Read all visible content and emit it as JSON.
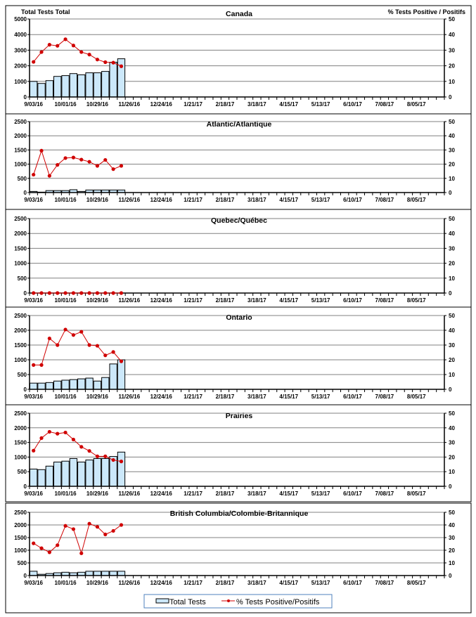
{
  "chart_data": [
    {
      "type": "bar+line",
      "title": "Canada",
      "ylabel_left": "Total Tests Total",
      "ylabel_right": "% Tests Positive / Positifs",
      "ylim_left": [
        0,
        5000
      ],
      "yticks_left": [
        0,
        1000,
        2000,
        3000,
        4000,
        5000
      ],
      "ylim_right": [
        0,
        50
      ],
      "yticks_right": [
        0,
        10,
        20,
        30,
        40,
        50
      ],
      "grid": true,
      "total_tests": [
        1000,
        870,
        1050,
        1320,
        1370,
        1500,
        1420,
        1550,
        1550,
        1640,
        2230,
        2450
      ],
      "pct_positive": [
        22.5,
        28.8,
        33.5,
        32.8,
        37.0,
        33.0,
        28.8,
        27.2,
        24.0,
        22.3,
        22.0,
        19.7
      ]
    },
    {
      "type": "bar+line",
      "title": "Atlantic/Atlantique",
      "ylim_left": [
        0,
        2500
      ],
      "yticks_left": [
        0,
        500,
        1000,
        1500,
        2000,
        2500
      ],
      "ylim_right": [
        0,
        50
      ],
      "yticks_right": [
        0,
        10,
        20,
        30,
        40,
        50
      ],
      "grid": true,
      "total_tests": [
        40,
        15,
        70,
        70,
        70,
        100,
        40,
        90,
        90,
        90,
        90,
        90
      ],
      "pct_positive": [
        12.6,
        29.5,
        11.8,
        19.5,
        24.3,
        24.7,
        23.2,
        21.7,
        18.8,
        23.0,
        16.5,
        18.8
      ]
    },
    {
      "type": "bar+line",
      "title": "Quebec/Québec",
      "ylim_left": [
        0,
        2500
      ],
      "yticks_left": [
        0,
        500,
        1000,
        1500,
        2000,
        2500
      ],
      "ylim_right": [
        0,
        50
      ],
      "yticks_right": [
        0,
        10,
        20,
        30,
        40,
        50
      ],
      "grid": true,
      "total_tests": [
        0,
        0,
        0,
        0,
        0,
        0,
        0,
        0,
        0,
        0,
        0,
        0
      ],
      "pct_positive": [
        0,
        0,
        0,
        0,
        0,
        0,
        0,
        0,
        0,
        0,
        0,
        0
      ]
    },
    {
      "type": "bar+line",
      "title": "Ontario",
      "ylim_left": [
        0,
        2500
      ],
      "yticks_left": [
        0,
        500,
        1000,
        1500,
        2000,
        2500
      ],
      "ylim_right": [
        0,
        50
      ],
      "yticks_right": [
        0,
        10,
        20,
        30,
        40,
        50
      ],
      "grid": true,
      "total_tests": [
        210,
        210,
        230,
        280,
        310,
        330,
        355,
        380,
        280,
        400,
        860,
        1000
      ],
      "pct_positive": [
        16.5,
        16.5,
        34.5,
        30.0,
        40.5,
        36.8,
        39.0,
        30.0,
        29.5,
        23.0,
        25.3,
        19.0
      ]
    },
    {
      "type": "bar+line",
      "title": "Prairies",
      "ylim_left": [
        0,
        2500
      ],
      "yticks_left": [
        0,
        500,
        1000,
        1500,
        2000,
        2500
      ],
      "ylim_right": [
        0,
        50
      ],
      "yticks_right": [
        0,
        10,
        20,
        30,
        40,
        50
      ],
      "grid": true,
      "total_tests": [
        590,
        570,
        690,
        830,
        860,
        950,
        830,
        900,
        950,
        950,
        1020,
        1170
      ],
      "pct_positive": [
        24.4,
        33.0,
        37.3,
        36.0,
        36.8,
        32.0,
        27.0,
        24.2,
        20.5,
        20.5,
        18.0,
        17.0
      ]
    },
    {
      "type": "bar+line",
      "title": "British Columbia/Colombie-Britannique",
      "ylim_left": [
        0,
        2500
      ],
      "yticks_left": [
        0,
        500,
        1000,
        1500,
        2000,
        2500
      ],
      "ylim_right": [
        0,
        50
      ],
      "yticks_right": [
        0,
        10,
        20,
        30,
        40,
        50
      ],
      "grid": true,
      "total_tests": [
        170,
        50,
        80,
        110,
        130,
        110,
        130,
        170,
        170,
        170,
        170,
        170
      ],
      "pct_positive": [
        25.5,
        21.6,
        18.4,
        24.0,
        39.3,
        36.7,
        17.6,
        41.0,
        38.5,
        32.5,
        35.3,
        40.0
      ]
    }
  ],
  "x_axis": {
    "num_weeks": 52,
    "tick_labels": [
      "9/03/16",
      "10/01/16",
      "10/29/16",
      "11/26/16",
      "12/24/16",
      "1/21/17",
      "2/18/17",
      "3/18/17",
      "4/15/17",
      "5/13/17",
      "6/10/17",
      "7/08/17",
      "8/05/17"
    ],
    "label_every_weeks": 4
  },
  "legend": {
    "position": "bottom",
    "items": [
      {
        "label": "Total Tests",
        "kind": "bar"
      },
      {
        "label": "% Tests Positive/Positifs",
        "kind": "line"
      }
    ]
  },
  "colors": {
    "bar_fill": "#CCE8FA",
    "bar_stroke": "#000000",
    "line": "#D00000",
    "grid": "#808080",
    "legend_border": "#4F81BD"
  }
}
